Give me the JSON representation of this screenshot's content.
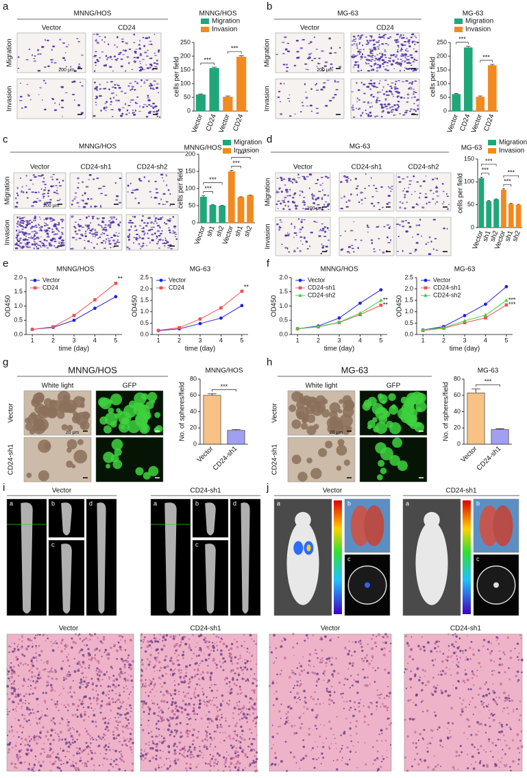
{
  "chart_data": [
    {
      "type": "bar",
      "title": "MNNG/HOS",
      "categories": [
        "Vector",
        "CD24",
        "Vector",
        "CD24"
      ],
      "series": [
        {
          "name": "Migration",
          "color": "#1fa77a",
          "values": [
            60,
            157,
            null,
            null
          ],
          "errors": [
            2,
            3,
            null,
            null
          ]
        },
        {
          "name": "Invasion",
          "color": "#f28a1f",
          "values": [
            null,
            null,
            52,
            198
          ],
          "errors": [
            null,
            null,
            3,
            4
          ]
        }
      ],
      "ylabel": "cells per field",
      "ylim": [
        0,
        250
      ],
      "yticks": [
        0,
        50,
        100,
        150,
        200,
        250
      ],
      "annotations": [
        {
          "label": "***",
          "pair": [
            0,
            1
          ]
        },
        {
          "label": "***",
          "pair": [
            2,
            3
          ]
        }
      ]
    },
    {
      "type": "bar",
      "title": "MG-63",
      "categories": [
        "Vector",
        "CD24",
        "Vector",
        "CD24"
      ],
      "series": [
        {
          "name": "Migration",
          "color": "#1fa77a",
          "values": [
            62,
            232,
            null,
            null
          ],
          "errors": [
            2,
            4,
            null,
            null
          ]
        },
        {
          "name": "Invasion",
          "color": "#f28a1f",
          "values": [
            null,
            null,
            52,
            167
          ],
          "errors": [
            null,
            null,
            3,
            3
          ]
        }
      ],
      "ylabel": "cells per field",
      "ylim": [
        0,
        250
      ],
      "yticks": [
        0,
        50,
        100,
        150,
        200,
        250
      ],
      "annotations": [
        {
          "label": "***",
          "pair": [
            0,
            1
          ]
        },
        {
          "label": "***",
          "pair": [
            2,
            3
          ]
        }
      ]
    },
    {
      "type": "bar",
      "title": "MNNG/HOS",
      "categories": [
        "Vector",
        "sh1",
        "sh2",
        "Vector",
        "sh1",
        "sh2"
      ],
      "series": [
        {
          "name": "Migration",
          "color": "#1fa77a",
          "values": [
            76,
            52,
            50,
            null,
            null,
            null
          ],
          "errors": [
            3,
            1,
            1,
            null,
            null,
            null
          ]
        },
        {
          "name": "Invasion",
          "color": "#f28a1f",
          "values": [
            null,
            null,
            null,
            150,
            75,
            80
          ],
          "errors": [
            null,
            null,
            null,
            3,
            1,
            1
          ]
        }
      ],
      "ylabel": "cells per field",
      "ylim": [
        0,
        200
      ],
      "yticks": [
        0,
        50,
        100,
        150,
        200
      ],
      "annotations": [
        {
          "label": "***",
          "pair": [
            0,
            1
          ]
        },
        {
          "label": "***",
          "pair": [
            0,
            2
          ]
        },
        {
          "label": "***",
          "pair": [
            3,
            4
          ]
        },
        {
          "label": "***",
          "pair": [
            3,
            5
          ]
        }
      ]
    },
    {
      "type": "bar",
      "title": "MG-63",
      "categories": [
        "Vector",
        "sh1",
        "sh2",
        "Vector",
        "sh1",
        "sh2"
      ],
      "series": [
        {
          "name": "Migration",
          "color": "#1fa77a",
          "values": [
            108,
            58,
            62,
            null,
            null,
            null
          ],
          "errors": [
            2,
            1,
            1,
            null,
            null,
            null
          ]
        },
        {
          "name": "Invasion",
          "color": "#f28a1f",
          "values": [
            null,
            null,
            null,
            83,
            52,
            50
          ],
          "errors": [
            null,
            null,
            null,
            2,
            1,
            1
          ]
        }
      ],
      "ylabel": "cells per field",
      "ylim": [
        0,
        150
      ],
      "yticks": [
        0,
        50,
        100,
        150
      ],
      "annotations": [
        {
          "label": "***",
          "pair": [
            0,
            1
          ]
        },
        {
          "label": "***",
          "pair": [
            0,
            2
          ]
        },
        {
          "label": "***",
          "pair": [
            3,
            4
          ]
        },
        {
          "label": "***",
          "pair": [
            3,
            5
          ]
        }
      ]
    },
    {
      "type": "line",
      "title": "MNNG/HOS",
      "x": [
        1,
        2,
        3,
        4,
        5
      ],
      "series": [
        {
          "name": "Vector",
          "color": "#1f1fdf",
          "marker": "circle",
          "values": [
            0.18,
            0.25,
            0.5,
            0.92,
            1.33
          ]
        },
        {
          "name": "CD24",
          "color": "#f0504f",
          "marker": "square",
          "values": [
            0.18,
            0.27,
            0.67,
            1.22,
            1.8
          ]
        }
      ],
      "xlabel": "time (day)",
      "ylabel": "OD450",
      "xlim": [
        0.7,
        5.3
      ],
      "xticks": [
        1,
        2,
        3,
        4,
        5
      ],
      "ylim": [
        0,
        2
      ],
      "yticks": [
        {
          "value": 0,
          "label": "0.0"
        },
        0.5,
        {
          "value": 1,
          "label": "1.0"
        },
        1.5,
        {
          "value": 2,
          "label": "2.0"
        }
      ],
      "annotations": [
        {
          "label": "**",
          "series": 1
        }
      ]
    },
    {
      "type": "line",
      "title": "MG-63",
      "x": [
        1,
        2,
        3,
        4,
        5
      ],
      "series": [
        {
          "name": "Vector",
          "color": "#1f1fdf",
          "marker": "circle",
          "values": [
            0.17,
            0.25,
            0.48,
            0.72,
            1.27
          ]
        },
        {
          "name": "CD24",
          "color": "#f0504f",
          "marker": "square",
          "values": [
            0.18,
            0.3,
            0.68,
            1.17,
            1.9
          ]
        }
      ],
      "xlabel": "time (day)",
      "ylabel": "OD450",
      "xlim": [
        0.7,
        5.3
      ],
      "xticks": [
        1,
        2,
        3,
        4,
        5
      ],
      "ylim": [
        0,
        2.5
      ],
      "yticks": [
        {
          "value": 0,
          "label": "0.0"
        },
        0.5,
        {
          "value": 1,
          "label": "1.0"
        },
        1.5,
        {
          "value": 2,
          "label": "2.0"
        },
        2.5
      ],
      "annotations": [
        {
          "label": "**",
          "series": 1
        }
      ]
    },
    {
      "type": "line",
      "title": "MNNG/HOS",
      "x": [
        1,
        2,
        3,
        4,
        5
      ],
      "series": [
        {
          "name": "Vector",
          "color": "#1f1fdf",
          "marker": "circle",
          "values": [
            0.2,
            0.3,
            0.58,
            1.1,
            1.57
          ]
        },
        {
          "name": "CD24-sh1",
          "color": "#f0504f",
          "marker": "square",
          "values": [
            0.2,
            0.27,
            0.42,
            0.7,
            1.03
          ]
        },
        {
          "name": "CD24-sh2",
          "color": "#3fcf3f",
          "marker": "triangle",
          "values": [
            0.2,
            0.28,
            0.43,
            0.75,
            1.2
          ]
        }
      ],
      "xlabel": "time (day)",
      "ylabel": "OD450",
      "xlim": [
        0.7,
        5.3
      ],
      "xticks": [
        1,
        2,
        3,
        4,
        5
      ],
      "ylim": [
        0,
        2
      ],
      "yticks": [
        {
          "value": 0,
          "label": "0.0"
        },
        0.5,
        {
          "value": 1,
          "label": "1.0"
        },
        1.5,
        {
          "value": 2,
          "label": "2.0"
        }
      ],
      "annotations": [
        {
          "label": "**",
          "series": 2
        },
        {
          "label": "**",
          "series": 1
        }
      ]
    },
    {
      "type": "line",
      "title": "MG-63",
      "x": [
        1,
        2,
        3,
        4,
        5
      ],
      "series": [
        {
          "name": "Vector",
          "color": "#1f1fdf",
          "marker": "circle",
          "values": [
            0.2,
            0.35,
            0.83,
            1.33,
            2.1
          ]
        },
        {
          "name": "CD24-sh1",
          "color": "#f0504f",
          "marker": "square",
          "values": [
            0.18,
            0.28,
            0.52,
            0.73,
            1.3
          ]
        },
        {
          "name": "CD24-sh2",
          "color": "#3fcf3f",
          "marker": "triangle",
          "values": [
            0.2,
            0.3,
            0.6,
            0.85,
            1.5
          ]
        }
      ],
      "xlabel": "time (day)",
      "ylabel": "OD450",
      "xlim": [
        0.7,
        5.3
      ],
      "xticks": [
        1,
        2,
        3,
        4,
        5
      ],
      "ylim": [
        0,
        2.5
      ],
      "yticks": [
        {
          "value": 0,
          "label": "0.0"
        },
        0.5,
        {
          "value": 1,
          "label": "1.0"
        },
        1.5,
        {
          "value": 2,
          "label": "2.0"
        },
        2.5
      ],
      "annotations": [
        {
          "label": "***",
          "series": 2
        },
        {
          "label": "***",
          "series": 1
        }
      ]
    },
    {
      "type": "bar",
      "title": "MNNG/HOS",
      "categories": [
        "Vector",
        "CD24-sh1"
      ],
      "values": [
        60,
        17
      ],
      "errors": [
        2,
        1
      ],
      "colors": [
        "#f8c185",
        "#a09ff2"
      ],
      "ylabel": "No. of spheres/field",
      "ylim": [
        0,
        80
      ],
      "yticks": [
        0,
        20,
        40,
        60,
        80
      ],
      "annotations": [
        {
          "label": "***",
          "pair": [
            0,
            1
          ]
        }
      ]
    },
    {
      "type": "bar",
      "title": "MG-63",
      "categories": [
        "Vector",
        "CD24-sh1"
      ],
      "values": [
        63,
        18
      ],
      "errors": [
        5,
        1
      ],
      "colors": [
        "#f8c185",
        "#a09ff2"
      ],
      "ylabel": "No. of spheres/field",
      "ylim": [
        0,
        80
      ],
      "yticks": [
        0,
        20,
        40,
        60,
        80
      ],
      "annotations": [
        {
          "label": "***",
          "pair": [
            0,
            1
          ]
        }
      ]
    }
  ],
  "figure": {
    "a": {
      "letter": "a",
      "title": "MNNG/HOS",
      "columns": [
        "Vector",
        "CD24"
      ],
      "rows": [
        "Migration",
        "Invasion"
      ],
      "scale": "200 μm"
    },
    "b": {
      "letter": "b",
      "title": "MG-63",
      "columns": [
        "Vector",
        "CD24"
      ],
      "rows": [
        "Migration",
        "Invasion"
      ],
      "scale": "200 μm"
    },
    "c": {
      "letter": "c",
      "title": "MNNG/HOS",
      "columns": [
        "Vector",
        "CD24-sh1",
        "CD24-sh2"
      ],
      "rows": [
        "Migration",
        "Invasion"
      ],
      "scale": "200 μm"
    },
    "d": {
      "letter": "d",
      "title": "MG-63",
      "columns": [
        "Vector",
        "CD24-sh1",
        "CD24-sh2"
      ],
      "rows": [
        "Migration",
        "Invasion"
      ],
      "scale": "200 μm"
    },
    "e": {
      "letter": "e"
    },
    "f": {
      "letter": "f"
    },
    "g": {
      "letter": "g",
      "title": "MNNG/HOS",
      "columns": [
        "White light",
        "GFP"
      ],
      "rows": [
        "Vector",
        "CD24-sh1"
      ],
      "scale": "20 μm"
    },
    "h": {
      "letter": "h",
      "title": "MG-63",
      "columns": [
        "White light",
        "GFP"
      ],
      "rows": [
        "Vector",
        "CD24-sh1"
      ],
      "scale": "20 μm"
    },
    "i": {
      "letter": "i",
      "groups": [
        "Vector",
        "CD24-sh1"
      ],
      "sublabels": [
        "a",
        "b",
        "c",
        "d"
      ],
      "histology": [
        "Vector",
        "CD24-sh1"
      ]
    },
    "j": {
      "letter": "j",
      "groups": [
        "Vector",
        "CD24-sh1"
      ],
      "sublabels": [
        "a",
        "b",
        "c"
      ],
      "histology": [
        "Vector",
        "CD24-sh1"
      ]
    }
  }
}
